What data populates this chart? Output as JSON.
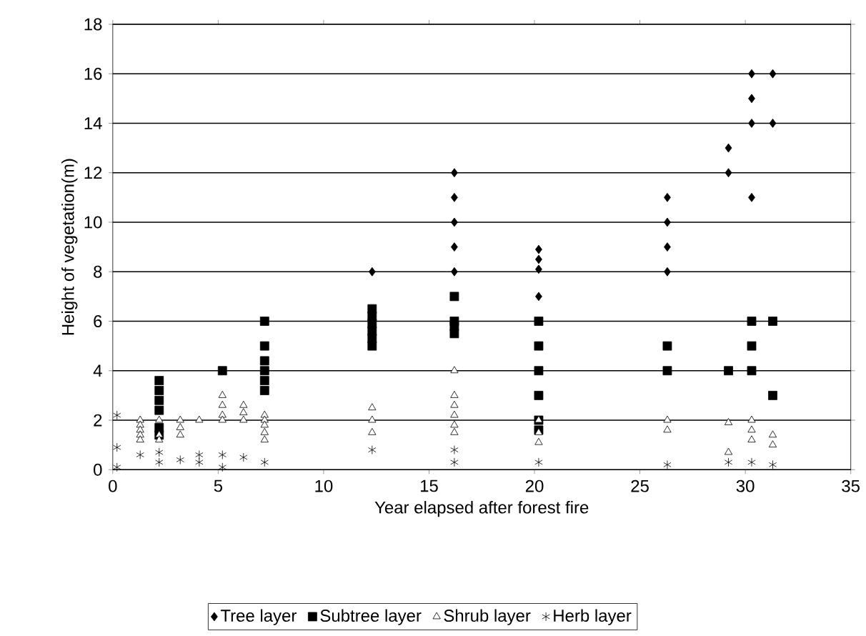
{
  "chart_data": {
    "type": "scatter",
    "xlabel": "Year elapsed after forest fire",
    "ylabel": "Height of vegetation(m)",
    "xlim": [
      0,
      35
    ],
    "ylim": [
      0,
      18
    ],
    "xticks": [
      0,
      5,
      10,
      15,
      20,
      25,
      30,
      35
    ],
    "yticks": [
      0,
      2,
      4,
      6,
      8,
      10,
      12,
      14,
      16,
      18
    ],
    "grid": "y",
    "legend": "bottom",
    "series": [
      {
        "name": "Tree layer",
        "color": "#000000",
        "marker": "diamond",
        "x": [
          12.3,
          16.2,
          16.2,
          16.2,
          16.2,
          16.2,
          20.2,
          20.2,
          20.2,
          20.2,
          26.3,
          26.3,
          26.3,
          26.3,
          29.2,
          29.2,
          30.3,
          30.3,
          30.3,
          30.3,
          31.3,
          31.3
        ],
        "values": [
          8,
          12,
          11,
          10,
          9,
          8,
          8.9,
          8.5,
          8.1,
          7,
          11,
          10,
          9,
          8,
          13,
          12,
          16,
          15,
          14,
          11,
          16,
          14
        ]
      },
      {
        "name": "Subtree layer",
        "color": "#000000",
        "marker": "square",
        "x": [
          2.2,
          2.2,
          2.2,
          2.2,
          2.2,
          2.2,
          5.2,
          7.2,
          7.2,
          7.2,
          7.2,
          7.2,
          7.2,
          12.3,
          12.3,
          12.3,
          12.3,
          12.3,
          12.3,
          16.2,
          16.2,
          16.2,
          16.2,
          20.2,
          20.2,
          20.2,
          20.2,
          20.2,
          20.2,
          26.3,
          26.3,
          29.2,
          30.3,
          30.3,
          30.3,
          31.3,
          31.3
        ],
        "values": [
          3.6,
          3.2,
          2.8,
          2.4,
          1.7,
          1.4,
          4,
          6,
          5,
          4.4,
          4,
          3.6,
          3.2,
          6.5,
          6.2,
          5.9,
          5.6,
          5.3,
          5,
          7,
          6,
          5.8,
          5.5,
          6,
          5,
          4,
          3,
          2,
          1.6,
          5,
          4,
          4,
          6,
          5,
          4,
          6,
          3
        ]
      },
      {
        "name": "Shrub layer",
        "color": "#000000",
        "marker": "triangle",
        "x": [
          1.3,
          1.3,
          1.3,
          1.3,
          1.3,
          2.2,
          2.2,
          2.2,
          3.2,
          3.2,
          3.2,
          4.1,
          5.2,
          5.2,
          5.2,
          5.2,
          6.2,
          6.2,
          6.2,
          7.2,
          7.2,
          7.2,
          7.2,
          7.2,
          12.3,
          12.3,
          12.3,
          16.2,
          16.2,
          16.2,
          16.2,
          16.2,
          16.2,
          20.2,
          20.2,
          20.2,
          26.3,
          26.3,
          29.2,
          29.2,
          30.3,
          30.3,
          30.3,
          31.3,
          31.3
        ],
        "values": [
          2,
          1.8,
          1.6,
          1.4,
          1.2,
          2,
          1.4,
          1.2,
          2,
          1.7,
          1.4,
          2,
          3,
          2.6,
          2.2,
          2,
          2.6,
          2.3,
          2,
          2.2,
          2,
          1.8,
          1.5,
          1.2,
          2.5,
          2,
          1.5,
          4,
          3,
          2.6,
          2.2,
          1.8,
          1.5,
          2,
          1.5,
          1.1,
          2,
          1.6,
          1.9,
          0.7,
          2,
          1.6,
          1.2,
          1.4,
          1
        ]
      },
      {
        "name": "Herb layer",
        "color": "#000000",
        "marker": "cross",
        "x": [
          0.2,
          0.2,
          0.2,
          1.3,
          2.2,
          2.2,
          3.2,
          4.1,
          4.1,
          5.2,
          5.2,
          6.2,
          7.2,
          12.3,
          16.2,
          16.2,
          20.2,
          26.3,
          29.2,
          30.3,
          31.3
        ],
        "values": [
          2.2,
          0.9,
          0.1,
          0.6,
          0.7,
          0.3,
          0.4,
          0.6,
          0.3,
          0.6,
          0.1,
          0.5,
          0.3,
          0.8,
          0.8,
          0.3,
          0.3,
          0.2,
          0.3,
          0.3,
          0.2
        ]
      }
    ]
  }
}
